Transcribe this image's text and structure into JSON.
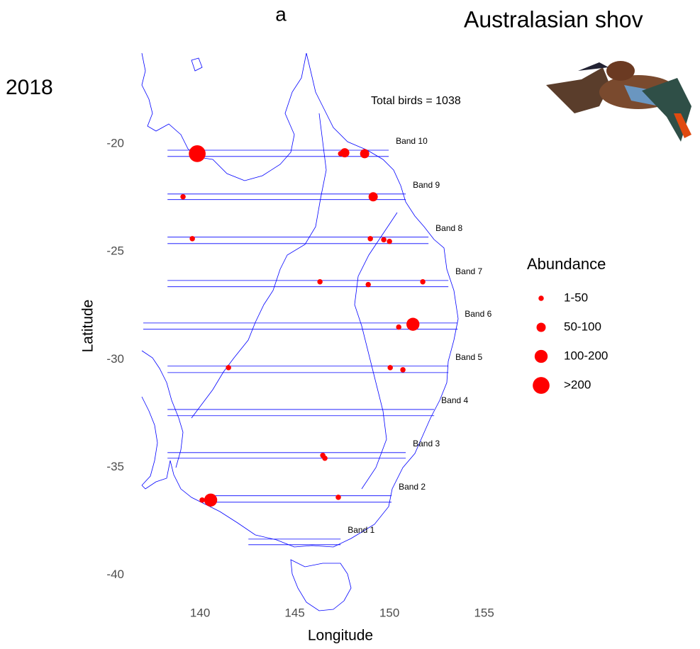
{
  "chart_data": {
    "type": "scatter",
    "panel_label": "a",
    "title": "Australasian shov",
    "year": "2018",
    "annotation": "Total birds = 1038",
    "x_label": "Longitude",
    "y_label": "Latitude",
    "xlim": [
      137,
      155.5
    ],
    "ylim": [
      -40.6,
      -15.8
    ],
    "xticks": [
      140,
      145,
      150,
      155
    ],
    "yticks": [
      -20,
      -25,
      -30,
      -35,
      -40
    ],
    "color": "#ff0000",
    "x": [
      139.85,
      147.42,
      147.64,
      148.69,
      139.1,
      149.14,
      139.59,
      148.99,
      149.7,
      150.0,
      146.33,
      148.88,
      151.76,
      151.24,
      150.49,
      141.5,
      150.04,
      150.71,
      146.48,
      146.59,
      140.56,
      140.11,
      147.3
    ],
    "y": [
      -20.46,
      -20.46,
      -20.42,
      -20.46,
      -22.46,
      -22.46,
      -24.4,
      -24.4,
      -24.45,
      -24.53,
      -26.4,
      -26.53,
      -26.4,
      -28.37,
      -28.5,
      -30.38,
      -30.38,
      -30.48,
      -34.45,
      -34.58,
      -36.52,
      -36.52,
      -36.39
    ],
    "sizes": [
      250,
      25,
      75,
      75,
      25,
      75,
      25,
      25,
      25,
      25,
      25,
      25,
      25,
      150,
      25,
      25,
      25,
      25,
      25,
      25,
      150,
      25,
      25
    ],
    "legend": {
      "title": "Abundance",
      "entries": [
        {
          "value": 25,
          "label": "1-50"
        },
        {
          "value": 75,
          "label": "50-100"
        },
        {
          "value": 150,
          "label": "100-200"
        },
        {
          "value": 250,
          "label": ">200"
        }
      ]
    },
    "bands": [
      {
        "label": "Band 10",
        "lat": [
          -20.3,
          -20.59
        ],
        "lon": [
          138.28,
          149.96
        ]
      },
      {
        "label": "Band 9",
        "lat": [
          -22.33,
          -22.59
        ],
        "lon": [
          138.28,
          150.86
        ]
      },
      {
        "label": "Band 8",
        "lat": [
          -24.33,
          -24.63
        ],
        "lon": [
          138.28,
          152.06
        ]
      },
      {
        "label": "Band 7",
        "lat": [
          -26.34,
          -26.63
        ],
        "lon": [
          138.28,
          153.11
        ]
      },
      {
        "label": "Band 6",
        "lat": [
          -28.31,
          -28.6
        ],
        "lon": [
          137.0,
          153.6
        ]
      },
      {
        "label": "Band 5",
        "lat": [
          -30.31,
          -30.61
        ],
        "lon": [
          138.28,
          153.11
        ]
      },
      {
        "label": "Band 4",
        "lat": [
          -32.32,
          -32.61
        ],
        "lon": [
          138.28,
          152.36
        ]
      },
      {
        "label": "Band 3",
        "lat": [
          -34.32,
          -34.58
        ],
        "lon": [
          138.28,
          150.86
        ]
      },
      {
        "label": "Band 2",
        "lat": [
          -36.32,
          -36.62
        ],
        "lon": [
          140.68,
          150.11
        ]
      },
      {
        "label": "Band 1",
        "lat": [
          -38.33,
          -38.59
        ],
        "lon": [
          142.55,
          147.42
        ]
      }
    ]
  }
}
